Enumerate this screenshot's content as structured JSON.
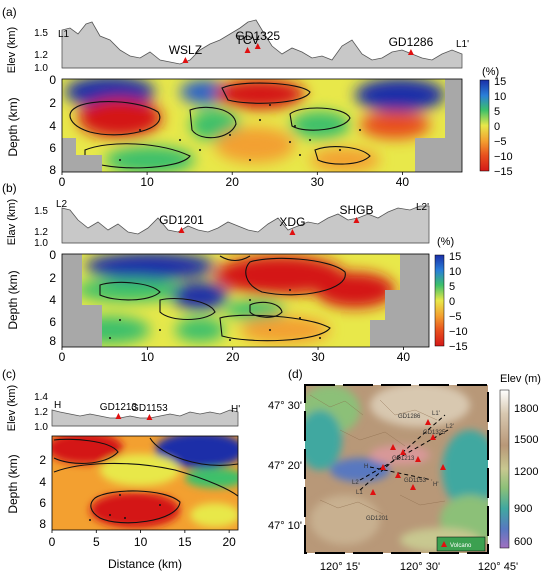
{
  "panels": {
    "a": {
      "label": "(a)",
      "elev_ylabel": "Elev (km)",
      "elev_ticks": [
        "1.5",
        "1.2",
        "1.0"
      ],
      "profile_start": "L1",
      "profile_end": "L1'",
      "stations": [
        {
          "name": "WSLZ",
          "x": 14.5
        },
        {
          "name": "TCV",
          "x": 21.8
        },
        {
          "name": "GD1325",
          "x": 23.0
        },
        {
          "name": "GD1286",
          "x": 41.0
        }
      ],
      "depth_ylabel": "Depth (km)",
      "depth_ticks": [
        "0",
        "2",
        "4",
        "6",
        "8"
      ],
      "x_ticks": [
        "0",
        "10",
        "20",
        "30",
        "40"
      ],
      "x_range": [
        0,
        47
      ],
      "colorbar_unit": "(%)",
      "colorbar_ticks": [
        "15",
        "10",
        "5",
        "0",
        "−5",
        "−10",
        "−15"
      ]
    },
    "b": {
      "label": "(b)",
      "elev_ylabel": "Elav (km)",
      "elev_ticks": [
        "1.5",
        "1.2",
        "1.0"
      ],
      "profile_start": "L2",
      "profile_end": "L2'",
      "stations": [
        {
          "name": "GD1201",
          "x": 14.0
        },
        {
          "name": "XDG",
          "x": 27.0
        },
        {
          "name": "SHGB",
          "x": 34.5
        }
      ],
      "depth_ylabel": "Depth (km)",
      "depth_ticks": [
        "0",
        "2",
        "4",
        "6",
        "8"
      ],
      "x_ticks": [
        "0",
        "10",
        "20",
        "30",
        "40"
      ],
      "x_range": [
        0,
        43
      ],
      "colorbar_unit": "(%)",
      "colorbar_ticks": [
        "15",
        "10",
        "5",
        "0",
        "−5",
        "−10",
        "−15"
      ]
    },
    "c": {
      "label": "(c)",
      "elev_ylabel": "Elev (km)",
      "elev_ticks": [
        "1.4",
        "1.2",
        "1.0"
      ],
      "profile_start": "H",
      "profile_end": "H'",
      "stations": [
        {
          "name": "GD1213",
          "x": 7.5
        },
        {
          "name": "GD1153",
          "x": 11.0
        }
      ],
      "depth_ylabel": "Depth (km)",
      "depth_ticks": [
        "2",
        "4",
        "6",
        "8"
      ],
      "x_ticks": [
        "0",
        "5",
        "10",
        "15",
        "20"
      ],
      "x_range": [
        0,
        21
      ],
      "xlabel": "Distance (km)"
    },
    "d": {
      "label": "(d)",
      "lat_ticks": [
        "47° 30'",
        "47° 20'",
        "47° 10'"
      ],
      "lon_ticks": [
        "120° 15'",
        "120° 30'",
        "120° 45'"
      ],
      "colorbar_title": "Elev (m)",
      "colorbar_ticks": [
        "1800",
        "1500",
        "1200",
        "900",
        "600"
      ],
      "legend_label": "Volcano",
      "map_labels": [
        "GD1286",
        "L1'",
        "L2'",
        "GD1325",
        "GD1213",
        "GD1153",
        "GD1201",
        "H",
        "H'",
        "L1",
        "L2"
      ]
    }
  },
  "colors": {
    "positive_high": "#1a2fa8",
    "zero": "#e8e84a",
    "negative_high": "#d41818",
    "station_marker": "#e01010",
    "terrain_fill": "#c8c8c8",
    "masked": "#a8a8a8"
  }
}
